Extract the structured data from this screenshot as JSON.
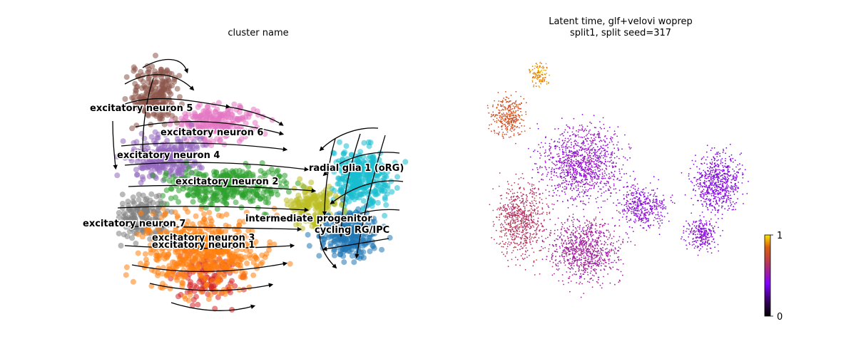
{
  "chart_data": [
    {
      "type": "scatter",
      "title": "cluster name",
      "axes_visible": false,
      "overlay": "velocity streamlines with arrows",
      "clusters": [
        {
          "name": "excitatory neuron 5",
          "color": "#8c564b"
        },
        {
          "name": "excitatory neuron 6",
          "color": "#e377c2"
        },
        {
          "name": "excitatory neuron 4",
          "color": "#9467bd"
        },
        {
          "name": "radial glia 1 (oRG)",
          "color": "#17becf"
        },
        {
          "name": "excitatory neuron 2",
          "color": "#2ca02c"
        },
        {
          "name": "intermediate progenitor",
          "color": "#bcbd22"
        },
        {
          "name": "excitatory neuron 7",
          "color": "#7f7f7f"
        },
        {
          "name": "cycling RG/IPC",
          "color": "#1f77b4"
        },
        {
          "name": "excitatory neuron 3",
          "color": "#d62728"
        },
        {
          "name": "excitatory neuron 1",
          "color": "#ff7f0e"
        }
      ]
    },
    {
      "type": "scatter",
      "title": "Latent time, glf+velovi woprep\nsplit1, split seed=317",
      "axes_visible": false,
      "colormap": "gnuplot",
      "colorbar": {
        "min": 0,
        "max": 1,
        "ticks": [
          "1",
          "0"
        ]
      }
    }
  ]
}
